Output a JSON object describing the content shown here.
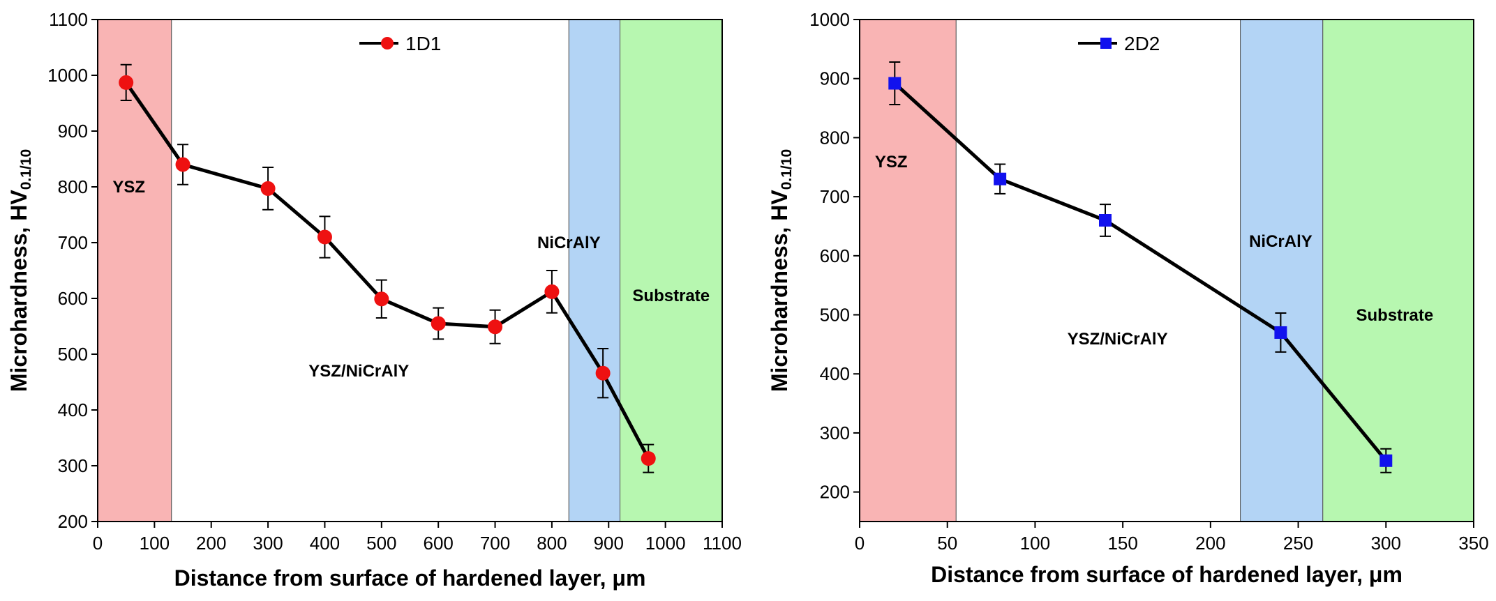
{
  "chart_data": [
    {
      "type": "line",
      "xlabel": "Distance from surface of hardened layer, μm",
      "ylabel_main": "Microhardness, HV",
      "ylabel_sub": "0.1/10",
      "xlim": [
        0,
        1100
      ],
      "ylim": [
        200,
        1100
      ],
      "xticks": [
        0,
        100,
        200,
        300,
        400,
        500,
        600,
        700,
        800,
        900,
        1000,
        1100
      ],
      "yticks": [
        200,
        300,
        400,
        500,
        600,
        700,
        800,
        900,
        1000,
        1100
      ],
      "regions": [
        {
          "from": 0,
          "to": 130,
          "color": "#f9b4b4",
          "label": "YSZ",
          "label_x": 55,
          "label_y": 790
        },
        {
          "from": 130,
          "to": 830,
          "color": "#ffffff",
          "label": "YSZ/NiCrAlY",
          "label_x": 460,
          "label_y": 460
        },
        {
          "from": 830,
          "to": 920,
          "color": "#b3d4f5",
          "label": "NiCrAlY",
          "label_x": 830,
          "label_y": 690
        },
        {
          "from": 920,
          "to": 1100,
          "color": "#b7f7b0",
          "label": "Substrate",
          "label_x": 1010,
          "label_y": 595
        }
      ],
      "series": [
        {
          "name": "1D1",
          "marker": "circle",
          "color": "#ee1111",
          "x": [
            50,
            150,
            300,
            400,
            500,
            600,
            700,
            800,
            890,
            970
          ],
          "y": [
            987,
            840,
            797,
            710,
            599,
            555,
            549,
            612,
            466,
            313
          ],
          "err": [
            32,
            36,
            38,
            37,
            34,
            28,
            30,
            38,
            44,
            25
          ]
        }
      ],
      "legend_position": "top-center"
    },
    {
      "type": "line",
      "xlabel": "Distance from surface of hardened layer, μm",
      "ylabel_main": "Microhardness, HV",
      "ylabel_sub": "0.1/10",
      "xlim": [
        0,
        350
      ],
      "ylim": [
        150,
        1000
      ],
      "xticks": [
        0,
        50,
        100,
        150,
        200,
        250,
        300,
        350
      ],
      "yticks": [
        200,
        300,
        400,
        500,
        600,
        700,
        800,
        900,
        1000
      ],
      "regions": [
        {
          "from": 0,
          "to": 55,
          "color": "#f9b4b4",
          "label": "YSZ",
          "label_x": 18,
          "label_y": 750
        },
        {
          "from": 55,
          "to": 217,
          "color": "#ffffff",
          "label": "YSZ/NiCrAlY",
          "label_x": 147,
          "label_y": 450
        },
        {
          "from": 217,
          "to": 264,
          "color": "#b3d4f5",
          "label": "NiCrAlY",
          "label_x": 240,
          "label_y": 615
        },
        {
          "from": 264,
          "to": 350,
          "color": "#b7f7b0",
          "label": "Substrate",
          "label_x": 305,
          "label_y": 490
        }
      ],
      "series": [
        {
          "name": "2D2",
          "marker": "square",
          "color": "#1111ee",
          "x": [
            20,
            80,
            140,
            240,
            300
          ],
          "y": [
            892,
            730,
            660,
            470,
            253
          ],
          "err": [
            36,
            25,
            27,
            33,
            20
          ]
        }
      ],
      "legend_position": "top-center"
    }
  ]
}
